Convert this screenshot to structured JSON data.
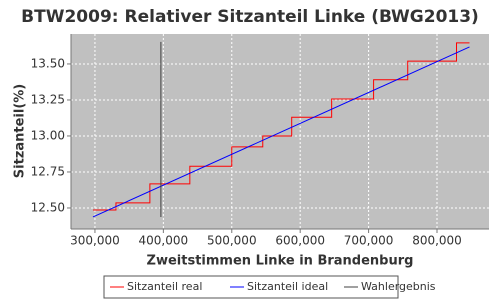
{
  "chart_data": {
    "type": "line",
    "title": "BTW2009: Relativer Sitzanteil Linke (BWG2013)",
    "x_label": "Zweitstimmen Linke in Brandenburg",
    "y_label": "Sitzanteil(%)",
    "xlim": [
      265000,
      876000
    ],
    "ylim": [
      12.354,
      13.708
    ],
    "xticks": [
      {
        "value": 300000,
        "label": "300,000"
      },
      {
        "value": 400000,
        "label": "400,000"
      },
      {
        "value": 500000,
        "label": "500,000"
      },
      {
        "value": 600000,
        "label": "600,000"
      },
      {
        "value": 700000,
        "label": "700,000"
      },
      {
        "value": 800000,
        "label": "800,000"
      }
    ],
    "yticks": [
      {
        "value": 12.5,
        "label": "12.50"
      },
      {
        "value": 12.75,
        "label": "12.75"
      },
      {
        "value": 13.0,
        "label": "13.00"
      },
      {
        "value": 13.25,
        "label": "13.25"
      },
      {
        "value": 13.5,
        "label": "13.50"
      }
    ],
    "grid": true,
    "legend": "bottom",
    "series": [
      {
        "name": "Sitzanteil real",
        "color": "#ff0000",
        "x": [
          297100,
          330700,
          330700,
          380300,
          380300,
          438700,
          438700,
          500000,
          500000,
          545300,
          545300,
          587600,
          587600,
          646000,
          646000,
          707300,
          707300,
          757200,
          757200,
          828500,
          828500,
          847500
        ],
        "values": [
          12.486,
          12.486,
          12.535,
          12.535,
          12.667,
          12.667,
          12.79,
          12.79,
          12.924,
          12.924,
          13.0,
          13.0,
          13.13,
          13.13,
          13.257,
          13.257,
          13.39,
          13.39,
          13.52,
          13.52,
          13.646,
          13.646
        ]
      },
      {
        "name": "Sitzanteil ideal",
        "color": "#0000ff",
        "x": [
          297100,
          847500
        ],
        "values": [
          12.4375,
          13.618
        ]
      },
      {
        "name": "Wahlergebnis",
        "color": "#404040",
        "x": [
          396400,
          396400
        ],
        "values": [
          12.4375,
          13.653
        ]
      }
    ]
  }
}
